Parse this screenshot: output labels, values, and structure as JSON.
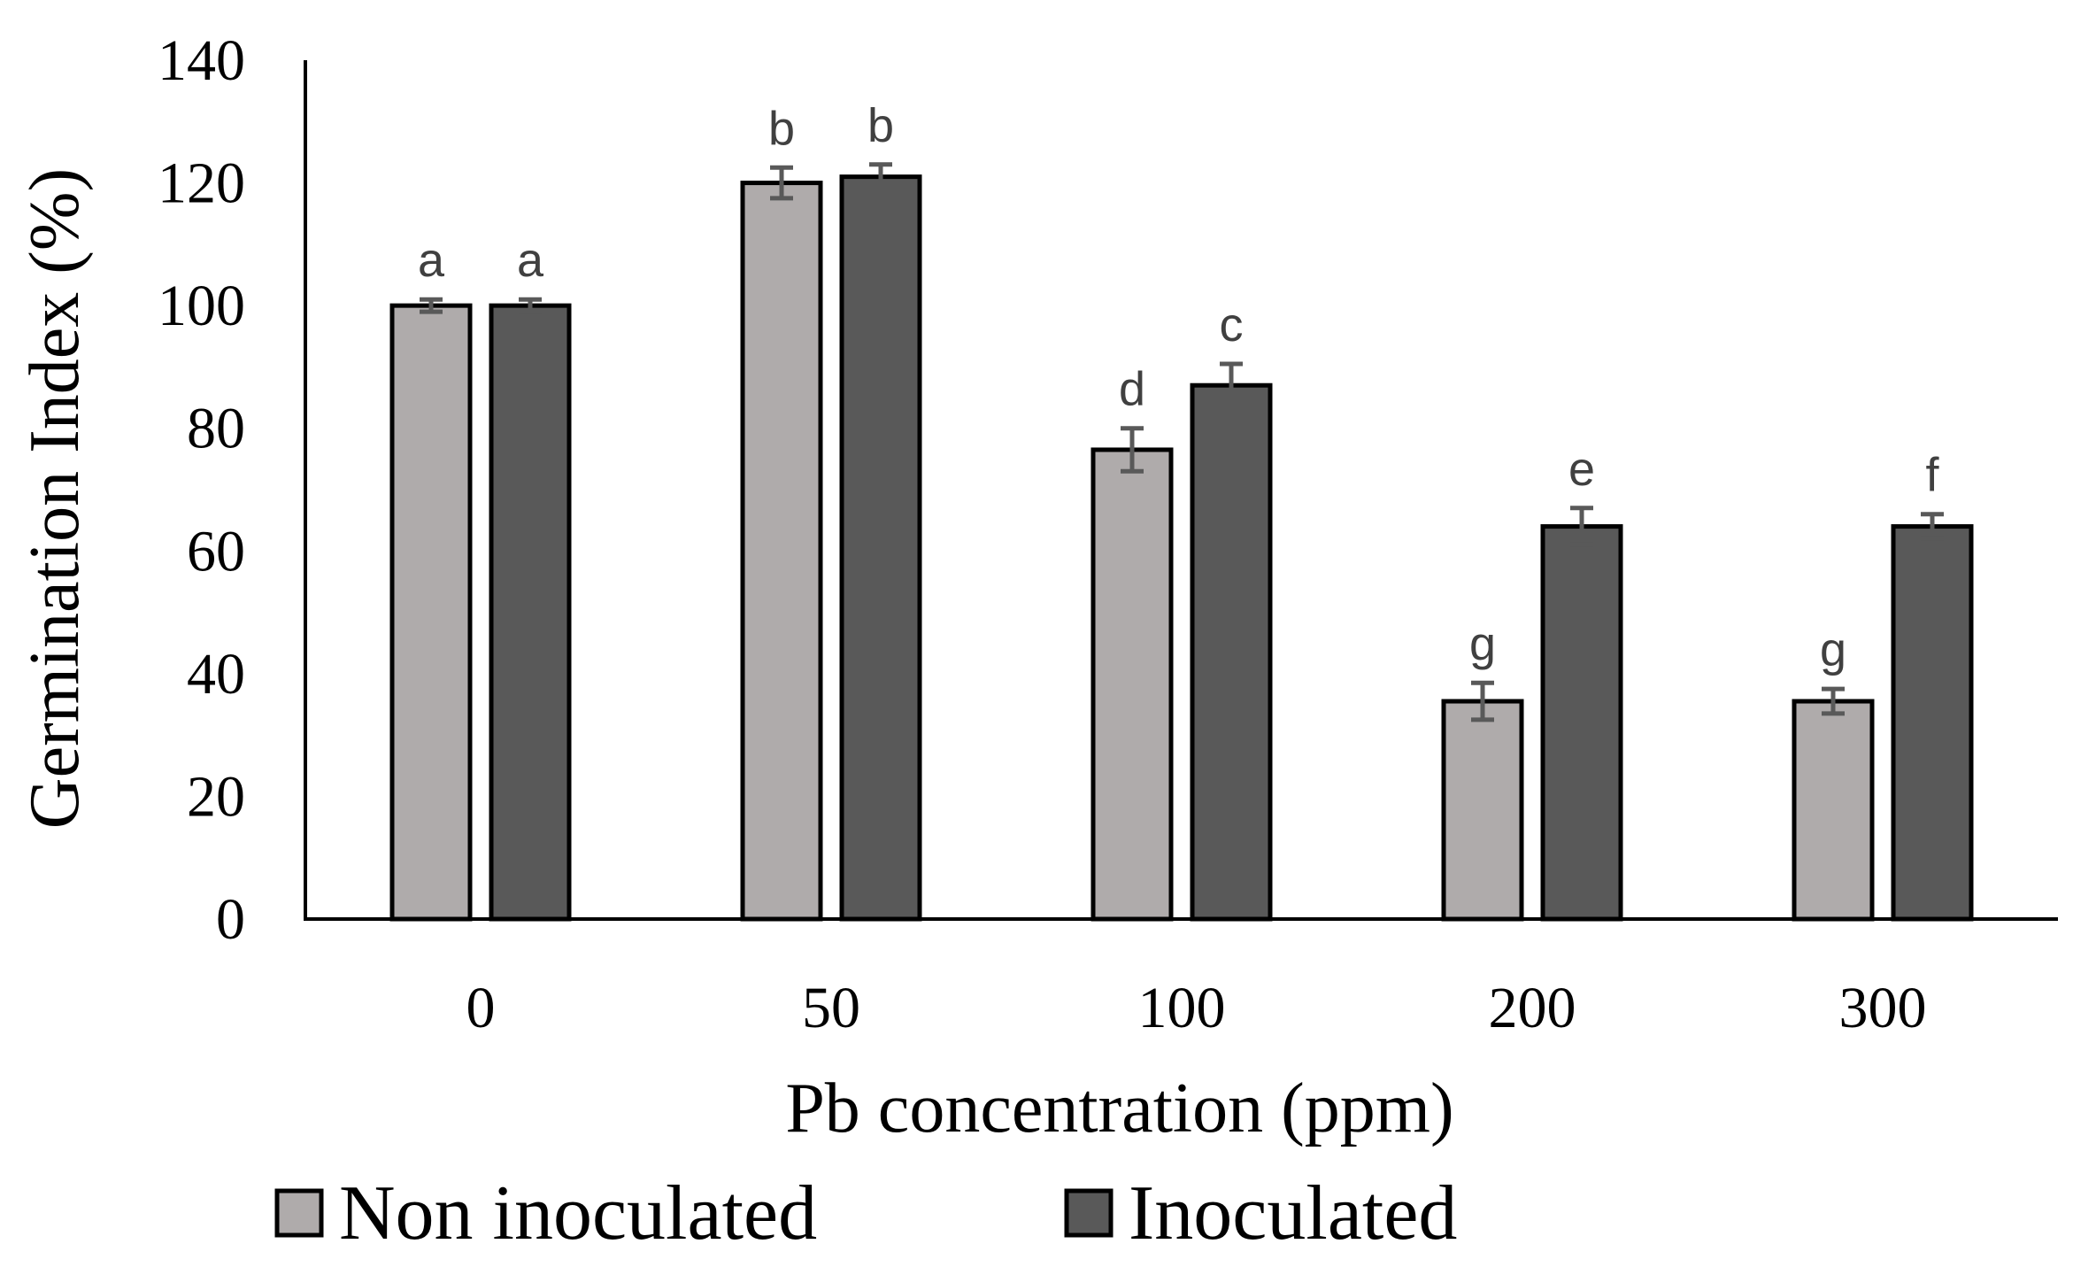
{
  "chart_data": {
    "type": "bar",
    "title": "",
    "xlabel": "Pb concentration (ppm)",
    "ylabel": "Germination Index (%)",
    "ylim": [
      0,
      140
    ],
    "yticks": [
      0,
      20,
      40,
      60,
      80,
      100,
      120,
      140
    ],
    "categories": [
      "0",
      "50",
      "100",
      "200",
      "300"
    ],
    "series": [
      {
        "name": "Non inoculated",
        "color": "#afabab",
        "values": [
          100,
          120,
          76.5,
          35.5,
          35.5
        ],
        "errors": [
          1,
          2.5,
          3.5,
          3,
          2
        ],
        "labels": [
          "a",
          "b",
          "d",
          "g",
          "g"
        ]
      },
      {
        "name": "Inoculated",
        "color": "#595959",
        "values": [
          100,
          121,
          87,
          64,
          64
        ],
        "errors": [
          1,
          2,
          3.5,
          3,
          2
        ],
        "labels": [
          "a",
          "b",
          "c",
          "e",
          "f"
        ]
      }
    ],
    "grid": false,
    "legend_position": "bottom-left"
  }
}
